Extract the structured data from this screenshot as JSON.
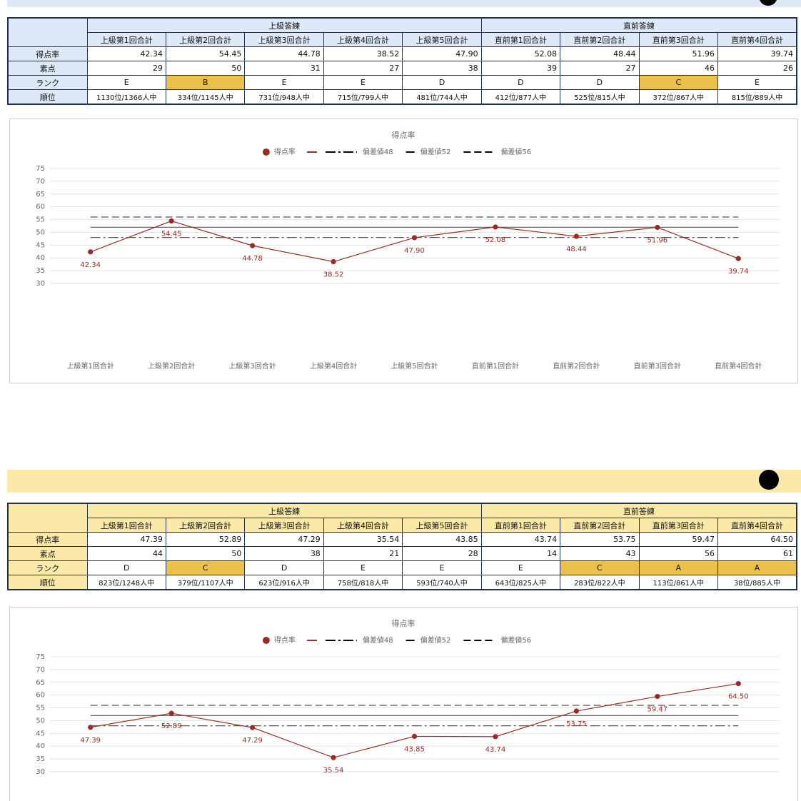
{
  "tables": [
    {
      "header_color": "#dde9f6",
      "highlight_color": "#e9c14b",
      "groups": [
        {
          "label": "上級答練",
          "columns": [
            "上級第1回合計",
            "上級第2回合計",
            "上級第3回合計",
            "上級第4回合計",
            "上級第5回合計"
          ]
        },
        {
          "label": "直前答練",
          "columns": [
            "直前第1回合計",
            "直前第2回合計",
            "直前第3回合計",
            "直前第4回合計"
          ]
        }
      ],
      "rows": [
        {
          "label": "得点率",
          "cells": [
            "42.34",
            "54.45",
            "44.78",
            "38.52",
            "47.90",
            "52.08",
            "48.44",
            "51.96",
            "39.74"
          ]
        },
        {
          "label": "素点",
          "cells": [
            "29",
            "50",
            "31",
            "27",
            "38",
            "39",
            "27",
            "46",
            "26"
          ]
        },
        {
          "label": "ランク",
          "cells": [
            "E",
            "B",
            "E",
            "E",
            "D",
            "D",
            "D",
            "C",
            "E"
          ],
          "highlighted": [
            1,
            7
          ]
        },
        {
          "label": "順位",
          "cells": [
            "1130位/1366人中",
            "334位/1145人中",
            "731位/948人中",
            "715位/799人中",
            "481位/744人中",
            "412位/877人中",
            "525位/815人中",
            "372位/867人中",
            "815位/889人中"
          ]
        }
      ]
    },
    {
      "header_color": "#fbe9a8",
      "highlight_color": "#e9c14b",
      "groups": [
        {
          "label": "上級答練",
          "columns": [
            "上級第1回合計",
            "上級第2回合計",
            "上級第3回合計",
            "上級第4回合計",
            "上級第5回合計"
          ]
        },
        {
          "label": "直前答練",
          "columns": [
            "直前第1回合計",
            "直前第2回合計",
            "直前第3回合計",
            "直前第4回合計"
          ]
        }
      ],
      "rows": [
        {
          "label": "得点率",
          "cells": [
            "47.39",
            "52.89",
            "47.29",
            "35.54",
            "43.85",
            "43.74",
            "53.75",
            "59.47",
            "64.50"
          ]
        },
        {
          "label": "素点",
          "cells": [
            "44",
            "50",
            "38",
            "21",
            "28",
            "14",
            "43",
            "56",
            "61"
          ]
        },
        {
          "label": "ランク",
          "cells": [
            "D",
            "C",
            "D",
            "E",
            "E",
            "E",
            "C",
            "A",
            "A"
          ],
          "highlighted": [
            1,
            6,
            7,
            8
          ]
        },
        {
          "label": "順位",
          "cells": [
            "823位/1248人中",
            "379位/1107人中",
            "623位/916人中",
            "758位/818人中",
            "593位/740人中",
            "643位/825人中",
            "283位/822人中",
            "113位/861人中",
            "38位/885人中"
          ]
        }
      ]
    }
  ],
  "chart_data": [
    {
      "type": "line",
      "title": "得点率",
      "categories": [
        "上級第1回合計",
        "上級第2回合計",
        "上級第3回合計",
        "上級第4回合計",
        "上級第5回合計",
        "直前第1回合計",
        "直前第2回合計",
        "直前第3回合計",
        "直前第4回合計"
      ],
      "series": [
        {
          "name": "得点率",
          "color": "#9b2a25",
          "marker": "circle",
          "values": [
            42.34,
            54.45,
            44.78,
            38.52,
            47.9,
            52.08,
            48.44,
            51.96,
            39.74
          ],
          "value_labels": [
            "42.34",
            "54.45",
            "44.78",
            "38.52",
            "47.90",
            "52.08",
            "48.44",
            "51.96",
            "39.74"
          ]
        },
        {
          "name": "偏差値48",
          "color": "#555555",
          "line_style": "dashdot",
          "values": [
            48,
            48,
            48,
            48,
            48,
            48,
            48,
            48,
            48
          ]
        },
        {
          "name": "偏差値52",
          "color": "#555555",
          "line_style": "solid",
          "values": [
            52,
            52,
            52,
            52,
            52,
            52,
            52,
            52,
            52
          ]
        },
        {
          "name": "偏差値56",
          "color": "#555555",
          "line_style": "dashed",
          "values": [
            56,
            56,
            56,
            56,
            56,
            56,
            56,
            56,
            56
          ]
        }
      ],
      "ylim": [
        30,
        75
      ],
      "yticks": [
        30,
        35,
        40,
        45,
        50,
        55,
        60,
        65,
        70,
        75
      ],
      "grid": true
    },
    {
      "type": "line",
      "title": "得点率",
      "series": [
        {
          "name": "得点率",
          "color": "#9b2a25",
          "marker": "circle",
          "values": [
            47.39,
            52.89,
            47.29,
            35.54,
            43.85,
            43.74,
            53.75,
            59.47,
            64.5
          ],
          "value_labels": [
            "47.39",
            "52.89",
            "47.29",
            "35.54",
            "43.85",
            "43.74",
            "53.75",
            "59.47",
            "64.50"
          ]
        },
        {
          "name": "偏差値48",
          "color": "#555555",
          "line_style": "dashdot",
          "values": [
            48,
            48,
            48,
            48,
            48,
            48,
            48,
            48,
            48
          ]
        },
        {
          "name": "偏差値52",
          "color": "#555555",
          "line_style": "solid",
          "values": [
            52,
            52,
            52,
            52,
            52,
            52,
            52,
            52,
            52
          ]
        },
        {
          "name": "偏差値56",
          "color": "#555555",
          "line_style": "dashed",
          "values": [
            56,
            56,
            56,
            56,
            56,
            56,
            56,
            56,
            56
          ]
        }
      ],
      "ylim": [
        30,
        75
      ],
      "yticks": [
        30,
        35,
        40,
        45,
        50,
        55,
        60,
        65,
        70,
        75
      ],
      "grid": true
    }
  ]
}
